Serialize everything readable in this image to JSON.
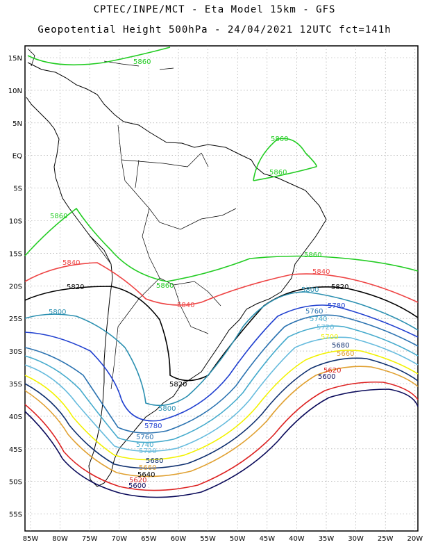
{
  "title_line1": "CPTEC/INPE/MCT -  Eta Model 15km - GFS",
  "title_line2": "Geopotential Height 500hPa - 24/04/2021 12UTC fct=141h",
  "lat_ticks": [
    "15N",
    "10N",
    "5N",
    "EQ",
    "5S",
    "10S",
    "15S",
    "20S",
    "25S",
    "30S",
    "35S",
    "40S",
    "45S",
    "50S",
    "55S"
  ],
  "lon_ticks": [
    "85W",
    "80W",
    "75W",
    "70W",
    "65W",
    "60W",
    "55W",
    "50W",
    "45W",
    "40W",
    "35W",
    "30W",
    "25W",
    "20W"
  ],
  "colors": {
    "c5860": "#22cc22",
    "c5840": "#ee4444",
    "c5820": "#000000",
    "c5800": "#2a8fb0",
    "c5780": "#1f3fcf",
    "c5760": "#2a72b0",
    "c5740": "#44aacc",
    "c5720": "#66bbdd",
    "c5700": "#f2f200",
    "c5680": "#0d2e6e",
    "c5660": "#e0a030",
    "c5620": "#dd2222",
    "c5600": "#0a0a5a",
    "coast": "#000000",
    "grid": "#999999"
  },
  "contour_labels": {
    "l5860": "5860",
    "l5840": "5840",
    "l5820": "5820",
    "l5800": "5800",
    "l5780": "5780",
    "l5760": "5760",
    "l5740": "5740",
    "l5720": "5720",
    "l5700": "5700",
    "l5680": "5680",
    "l5660": "5660",
    "l5640": "5640",
    "l5620": "5620",
    "l5600": "5600"
  }
}
